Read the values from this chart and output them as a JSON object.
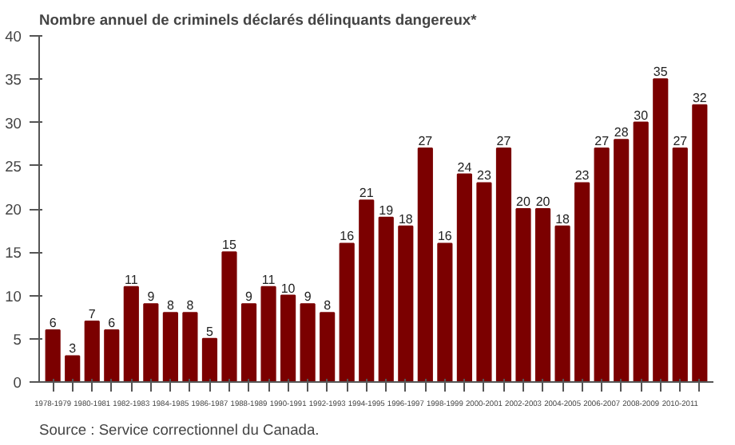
{
  "chart_data": {
    "type": "bar",
    "title": "Nombre annuel de criminels déclarés délinquants dangereux*",
    "categories": [
      "1978-1979",
      null,
      "1980-1981",
      null,
      "1982-1983",
      null,
      "1984-1985",
      null,
      "1986-1987",
      null,
      "1988-1989",
      null,
      "1990-1991",
      null,
      "1992-1993",
      null,
      "1994-1995",
      null,
      "1996-1997",
      null,
      "1998-1999",
      null,
      "2000-2001",
      null,
      "2002-2003",
      null,
      "2004-2005",
      null,
      "2006-2007",
      null,
      "2008-2009",
      null,
      "2010-2011",
      null
    ],
    "values": [
      6,
      3,
      7,
      6,
      11,
      9,
      8,
      8,
      5,
      15,
      9,
      11,
      10,
      9,
      8,
      16,
      21,
      19,
      18,
      27,
      16,
      24,
      23,
      27,
      20,
      20,
      18,
      23,
      27,
      28,
      30,
      35,
      27,
      32
    ],
    "color": "#7b0000",
    "ylim": [
      0,
      40
    ],
    "yticks": [
      0,
      5,
      10,
      15,
      20,
      25,
      30,
      35,
      40
    ],
    "grid": false,
    "data_labels": true,
    "annotations": [
      "Source : Service correctionnel du Canada."
    ]
  }
}
